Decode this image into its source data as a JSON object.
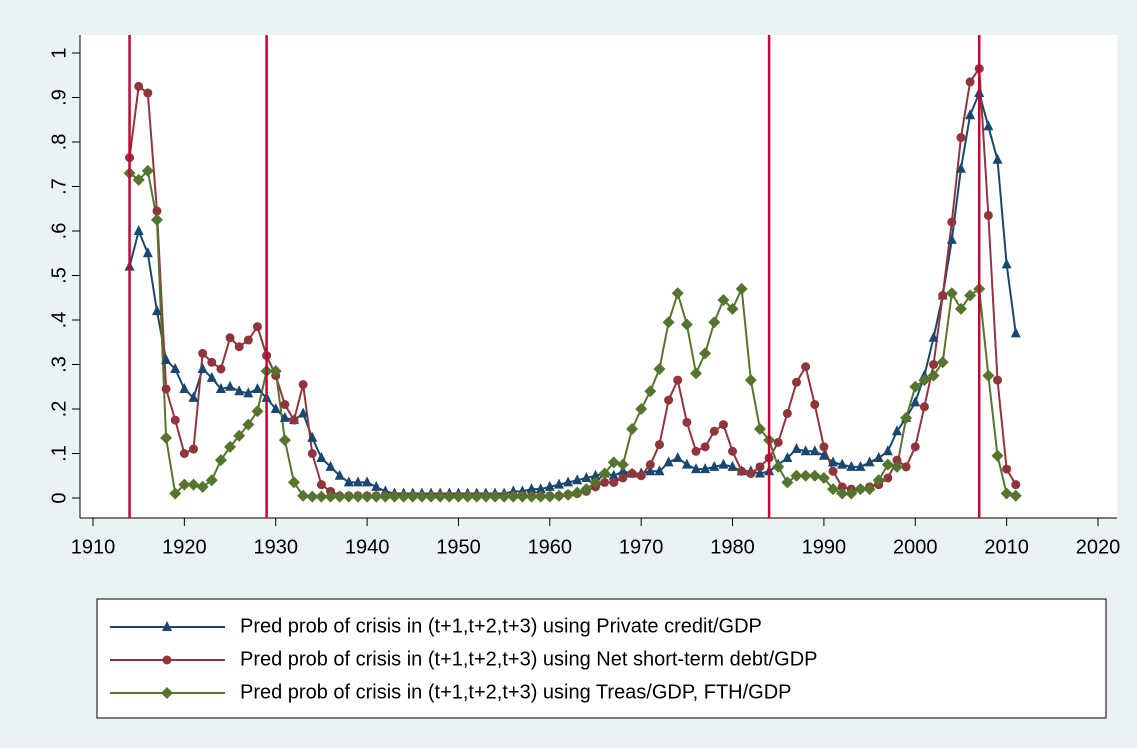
{
  "chart_data": {
    "type": "line",
    "x": [
      1914,
      1915,
      1916,
      1917,
      1918,
      1919,
      1920,
      1921,
      1922,
      1923,
      1924,
      1925,
      1926,
      1927,
      1928,
      1929,
      1930,
      1931,
      1932,
      1933,
      1934,
      1935,
      1936,
      1937,
      1938,
      1939,
      1940,
      1941,
      1942,
      1943,
      1944,
      1945,
      1946,
      1947,
      1948,
      1949,
      1950,
      1951,
      1952,
      1953,
      1954,
      1955,
      1956,
      1957,
      1958,
      1959,
      1960,
      1961,
      1962,
      1963,
      1964,
      1965,
      1966,
      1967,
      1968,
      1969,
      1970,
      1971,
      1972,
      1973,
      1974,
      1975,
      1976,
      1977,
      1978,
      1979,
      1980,
      1981,
      1982,
      1983,
      1984,
      1985,
      1986,
      1987,
      1988,
      1989,
      1990,
      1991,
      1992,
      1993,
      1994,
      1995,
      1996,
      1997,
      1998,
      1999,
      2000,
      2001,
      2002,
      2003,
      2004,
      2005,
      2006,
      2007,
      2008,
      2009,
      2010,
      2011
    ],
    "series": [
      {
        "name": "Pred prob of crisis in (t+1,t+2,t+3) using Private credit/GDP",
        "color": "#1a476f",
        "marker": "triangle",
        "values": [
          0.52,
          0.6,
          0.55,
          0.42,
          0.31,
          0.29,
          0.245,
          0.225,
          0.29,
          0.27,
          0.245,
          0.25,
          0.24,
          0.235,
          0.245,
          0.225,
          0.2,
          0.18,
          0.175,
          0.19,
          0.135,
          0.09,
          0.07,
          0.05,
          0.035,
          0.035,
          0.035,
          0.025,
          0.015,
          0.01,
          0.01,
          0.01,
          0.01,
          0.01,
          0.01,
          0.01,
          0.01,
          0.01,
          0.01,
          0.01,
          0.01,
          0.01,
          0.015,
          0.015,
          0.02,
          0.02,
          0.025,
          0.03,
          0.035,
          0.04,
          0.045,
          0.05,
          0.055,
          0.05,
          0.06,
          0.055,
          0.055,
          0.06,
          0.06,
          0.08,
          0.09,
          0.075,
          0.065,
          0.065,
          0.07,
          0.075,
          0.07,
          0.06,
          0.06,
          0.055,
          0.06,
          0.075,
          0.09,
          0.11,
          0.105,
          0.105,
          0.095,
          0.08,
          0.075,
          0.07,
          0.07,
          0.08,
          0.09,
          0.105,
          0.15,
          0.18,
          0.215,
          0.275,
          0.36,
          0.455,
          0.58,
          0.74,
          0.86,
          0.91,
          0.835,
          0.76,
          0.525,
          0.37
        ]
      },
      {
        "name": "Pred prob of crisis in (t+1,t+2,t+3) using Net short-term debt/GDP",
        "color": "#90353b",
        "marker": "circle",
        "values": [
          0.765,
          0.925,
          0.91,
          0.645,
          0.245,
          0.175,
          0.1,
          0.11,
          0.325,
          0.305,
          0.29,
          0.36,
          0.34,
          0.355,
          0.385,
          0.32,
          0.275,
          0.21,
          0.175,
          0.255,
          0.1,
          0.03,
          0.015,
          0.005,
          0.005,
          0.005,
          0.005,
          0.005,
          0.005,
          0.005,
          0.005,
          0.005,
          0.005,
          0.005,
          0.005,
          0.005,
          0.005,
          0.005,
          0.005,
          0.005,
          0.005,
          0.005,
          0.005,
          0.005,
          0.005,
          0.005,
          0.005,
          0.005,
          0.008,
          0.01,
          0.015,
          0.025,
          0.035,
          0.035,
          0.045,
          0.055,
          0.05,
          0.075,
          0.12,
          0.22,
          0.265,
          0.17,
          0.105,
          0.115,
          0.15,
          0.165,
          0.105,
          0.06,
          0.055,
          0.07,
          0.09,
          0.125,
          0.19,
          0.26,
          0.295,
          0.21,
          0.115,
          0.06,
          0.025,
          0.02,
          0.02,
          0.025,
          0.03,
          0.045,
          0.085,
          0.07,
          0.115,
          0.205,
          0.3,
          0.455,
          0.62,
          0.81,
          0.935,
          0.965,
          0.635,
          0.265,
          0.065,
          0.03
        ]
      },
      {
        "name": "Pred prob of crisis in (t+1,t+2,t+3) using Treas/GDP, FTH/GDP",
        "color": "#55752f",
        "marker": "diamond",
        "values": [
          0.73,
          0.715,
          0.735,
          0.625,
          0.135,
          0.01,
          0.03,
          0.03,
          0.025,
          0.04,
          0.085,
          0.115,
          0.14,
          0.165,
          0.195,
          0.285,
          0.285,
          0.13,
          0.035,
          0.005,
          0.003,
          0.003,
          0.003,
          0.003,
          0.003,
          0.003,
          0.003,
          0.003,
          0.003,
          0.003,
          0.003,
          0.003,
          0.003,
          0.003,
          0.003,
          0.003,
          0.003,
          0.003,
          0.003,
          0.003,
          0.003,
          0.003,
          0.003,
          0.003,
          0.003,
          0.003,
          0.003,
          0.005,
          0.007,
          0.012,
          0.02,
          0.035,
          0.055,
          0.08,
          0.075,
          0.155,
          0.2,
          0.24,
          0.29,
          0.395,
          0.46,
          0.39,
          0.28,
          0.325,
          0.395,
          0.445,
          0.425,
          0.47,
          0.265,
          0.155,
          0.13,
          0.07,
          0.035,
          0.05,
          0.05,
          0.05,
          0.045,
          0.02,
          0.01,
          0.01,
          0.02,
          0.02,
          0.04,
          0.075,
          0.07,
          0.18,
          0.25,
          0.265,
          0.275,
          0.305,
          0.46,
          0.425,
          0.455,
          0.47,
          0.275,
          0.095,
          0.01,
          0.005
        ]
      }
    ],
    "reference_lines": {
      "x": [
        1914,
        1929,
        1984,
        2007
      ],
      "color": "#c10534"
    },
    "xlim": [
      1910,
      2020
    ],
    "xticks": [
      1910,
      1920,
      1930,
      1940,
      1950,
      1960,
      1970,
      1980,
      1990,
      2000,
      2010,
      2020
    ],
    "ylim": [
      0,
      1
    ],
    "yticks": [
      0,
      {
        "value": 0.1,
        "label": ".1"
      },
      {
        "value": 0.2,
        "label": ".2"
      },
      {
        "value": 0.3,
        "label": ".3"
      },
      {
        "value": 0.4,
        "label": ".4"
      },
      {
        "value": 0.5,
        "label": ".5"
      },
      {
        "value": 0.6,
        "label": ".6"
      },
      {
        "value": 0.7,
        "label": ".7"
      },
      {
        "value": 0.8,
        "label": ".8"
      },
      {
        "value": 0.9,
        "label": ".9"
      },
      1
    ],
    "grid": false,
    "legend": "bottom"
  }
}
